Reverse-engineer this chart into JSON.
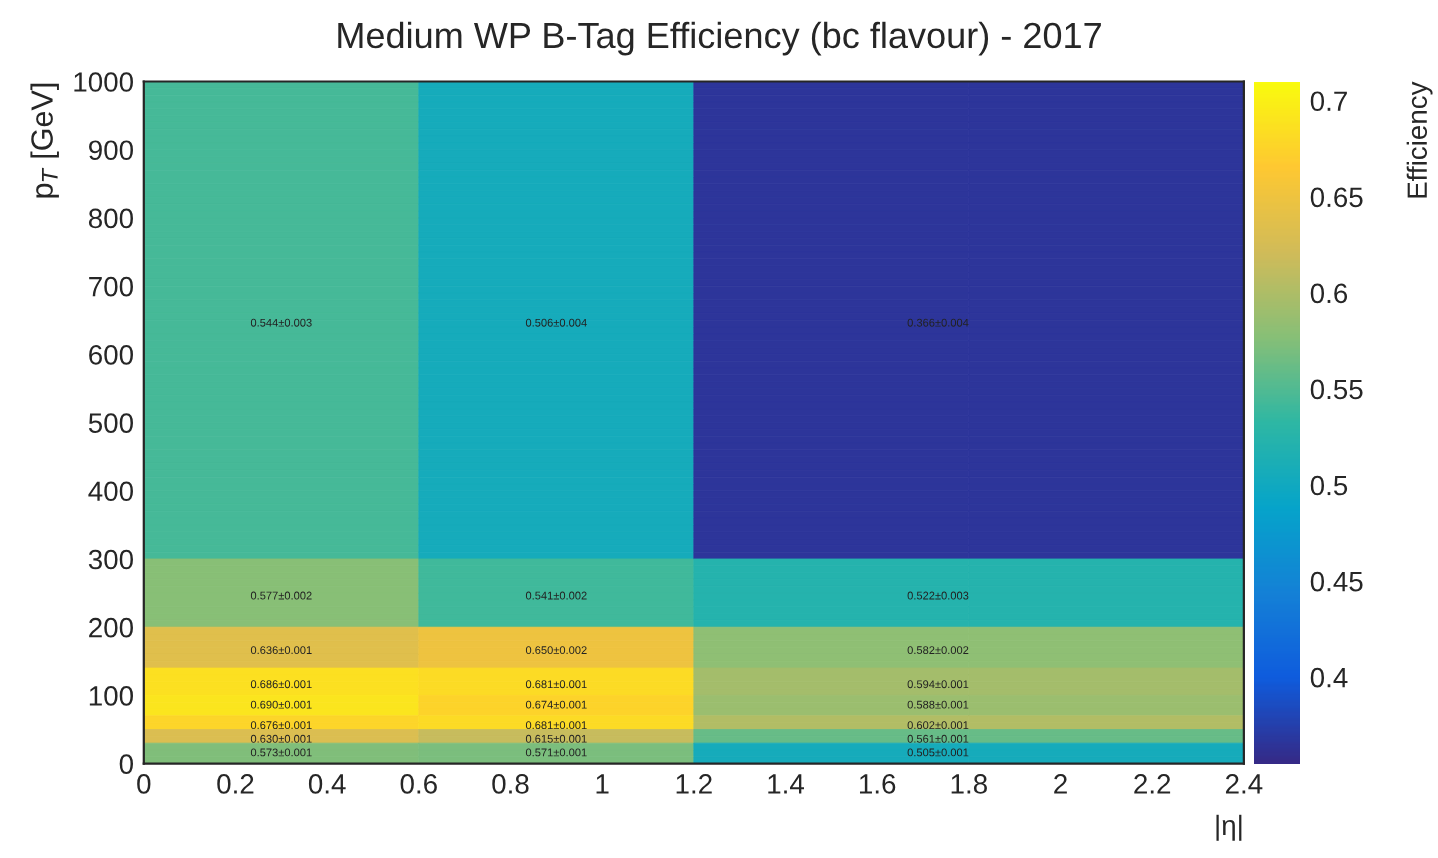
{
  "chart_data": {
    "type": "heatmap",
    "title": "Medium WP B-Tag Efficiency (bc flavour) - 2017",
    "xlabel": "|η|",
    "ylabel": "p$_{T}$ [GeV]",
    "clabel": "Efficiency",
    "cells": [
      [
        0.544,
        0.506,
        0.366,
        0.366
      ],
      [
        0.544,
        0.506,
        0.366,
        0.366
      ],
      [
        0.544,
        0.506,
        0.366,
        0.366
      ],
      [
        0.544,
        0.506,
        0.366,
        0.366
      ],
      [
        0.544,
        0.506,
        0.366,
        0.366
      ],
      [
        0.544,
        0.506,
        0.366,
        0.366
      ],
      [
        0.544,
        0.506,
        0.366,
        0.366
      ],
      [
        0.544,
        0.506,
        0.366,
        0.366
      ],
      [
        0.544,
        0.506,
        0.366,
        0.366
      ],
      [
        0.544,
        0.506,
        0.366,
        0.366
      ],
      [
        0.544,
        0.506,
        0.366,
        0.366
      ],
      [
        0.544,
        0.506,
        0.366,
        0.366
      ],
      [
        0.544,
        0.506,
        0.366,
        0.366
      ],
      [
        0.544,
        0.506,
        0.366,
        0.366
      ],
      [
        0.544,
        0.506,
        0.366,
        0.366
      ],
      [
        0.544,
        0.506,
        0.366,
        0.366
      ],
      [
        0.544,
        0.506,
        0.366,
        0.366
      ],
      [
        0.544,
        0.506,
        0.366,
        0.366
      ],
      [
        0.544,
        0.506,
        0.366,
        0.366
      ],
      [
        0.544,
        0.506,
        0.366,
        0.366
      ],
      [
        0.544,
        0.506,
        0.366,
        0.366
      ],
      [
        0.544,
        0.506,
        0.366,
        0.366
      ],
      [
        0.544,
        0.506,
        0.366,
        0.366
      ],
      [
        0.544,
        0.506,
        0.366,
        0.366
      ],
      [
        0.544,
        0.506,
        0.366,
        0.366
      ],
      [
        0.544,
        0.506,
        0.366,
        0.366
      ],
      [
        0.544,
        0.506,
        0.366,
        0.366
      ],
      [
        0.544,
        0.506,
        0.366,
        0.366
      ],
      [
        0.544,
        0.506,
        0.366,
        0.366
      ],
      [
        0.544,
        0.506,
        0.366,
        0.366
      ],
      [
        0.544,
        0.506,
        0.366,
        0.366
      ],
      [
        0.544,
        0.506,
        0.366,
        0.366
      ],
      [
        0.544,
        0.506,
        0.366,
        0.366
      ],
      [
        0.544,
        0.506,
        0.366,
        0.366
      ],
      [
        0.544,
        0.506,
        0.366,
        0.366
      ],
      [
        0.544,
        0.506,
        0.366,
        0.366
      ],
      [
        0.544,
        0.506,
        0.366,
        0.366
      ],
      [
        0.544,
        0.506,
        0.366,
        0.366
      ],
      [
        0.544,
        0.506,
        0.366,
        0.366
      ],
      [
        0.544,
        0.506,
        0.366,
        0.366
      ],
      [
        0.544,
        0.506,
        0.366,
        0.366
      ],
      [
        0.544,
        0.506,
        0.366,
        0.366
      ],
      [
        0.544,
        0.506,
        0.366,
        0.366
      ],
      [
        0.544,
        0.506,
        0.366,
        0.366
      ],
      [
        0.544,
        0.506,
        0.366,
        0.366
      ],
      [
        0.544,
        0.506,
        0.366,
        0.366
      ],
      [
        0.544,
        0.506,
        0.366,
        0.366
      ],
      [
        0.544,
        0.506,
        0.366,
        0.366
      ],
      [
        0.544,
        0.506,
        0.366,
        0.366
      ],
      [
        0.544,
        0.506,
        0.366,
        0.366
      ],
      [
        0.544,
        0.506,
        0.366,
        0.366
      ],
      [
        0.544,
        0.506,
        0.366,
        0.366
      ],
      [
        0.544,
        0.506,
        0.366,
        0.366
      ],
      [
        0.544,
        0.506,
        0.366,
        0.366
      ],
      [
        0.544,
        0.506,
        0.366,
        0.366
      ],
      [
        0.544,
        0.506,
        0.366,
        0.366
      ],
      [
        0.544,
        0.506,
        0.366,
        0.366
      ],
      [
        0.544,
        0.506,
        0.366,
        0.366
      ],
      [
        0.544,
        0.506,
        0.366,
        0.366
      ],
      [
        0.544,
        0.506,
        0.366,
        0.366
      ],
      [
        0.544,
        0.506,
        0.366,
        0.366
      ],
      [
        0.544,
        0.506,
        0.366,
        0.366
      ],
      [
        0.544,
        0.506,
        0.366,
        0.366
      ],
      [
        0.544,
        0.506,
        0.366,
        0.366
      ],
      [
        0.544,
        0.506,
        0.366,
        0.366
      ],
      [
        0.544,
        0.506,
        0.366,
        0.366
      ],
      [
        0.544,
        0.506,
        0.366,
        0.366
      ],
      [
        0.544,
        0.506,
        0.366,
        0.366
      ],
      [
        0.544,
        0.506,
        0.366,
        0.366
      ],
      [
        0.544,
        0.506,
        0.366,
        0.366
      ],
      [
        0.577,
        0.541,
        0.522,
        0.522
      ],
      [
        0.577,
        0.541,
        0.522,
        0.522
      ],
      [
        0.577,
        0.541,
        0.522,
        0.522
      ],
      [
        0.577,
        0.541,
        0.522,
        0.522
      ],
      [
        0.577,
        0.541,
        0.522,
        0.522
      ],
      [
        0.577,
        0.541,
        0.522,
        0.522
      ],
      [
        0.577,
        0.541,
        0.522,
        0.522
      ],
      [
        0.577,
        0.541,
        0.522,
        0.522
      ],
      [
        0.577,
        0.541,
        0.522,
        0.522
      ],
      [
        0.577,
        0.541,
        0.522,
        0.522
      ],
      [
        0.636,
        0.65,
        0.582,
        0.582
      ],
      [
        0.636,
        0.65,
        0.582,
        0.582
      ],
      [
        0.636,
        0.65,
        0.582,
        0.582
      ],
      [
        0.636,
        0.65,
        0.582,
        0.582
      ],
      [
        0.636,
        0.65,
        0.582,
        0.582
      ],
      [
        0.636,
        0.65,
        0.582,
        0.582
      ],
      [
        0.686,
        0.681,
        0.594,
        0.594
      ],
      [
        0.686,
        0.681,
        0.594,
        0.594
      ],
      [
        0.686,
        0.681,
        0.594,
        0.594
      ],
      [
        0.686,
        0.681,
        0.594,
        0.594
      ],
      [
        0.69,
        0.674,
        0.588,
        0.588
      ],
      [
        0.69,
        0.674,
        0.588,
        0.588
      ],
      [
        0.69,
        0.674,
        0.588,
        0.588
      ],
      [
        0.676,
        0.681,
        0.602,
        0.602
      ],
      [
        0.676,
        0.681,
        0.602,
        0.602
      ],
      [
        0.63,
        0.615,
        0.561,
        0.561
      ],
      [
        0.63,
        0.615,
        0.561,
        0.561
      ],
      [
        0.573,
        0.571,
        0.505,
        0.505
      ],
      [
        0.573,
        0.571,
        0.505,
        0.505
      ],
      [
        0.573,
        0.571,
        0.505,
        0.505
      ]
    ],
    "cell_labels": [
      [
        null,
        null,
        null,
        null
      ],
      [
        null,
        null,
        null,
        null
      ],
      [
        null,
        null,
        null,
        null
      ],
      [
        null,
        null,
        null,
        null
      ],
      [
        null,
        null,
        null,
        null
      ],
      [
        null,
        null,
        null,
        null
      ],
      [
        null,
        null,
        null,
        null
      ],
      [
        null,
        null,
        null,
        null
      ],
      [
        null,
        null,
        null,
        null
      ],
      [
        null,
        null,
        null,
        null
      ],
      [
        null,
        null,
        null,
        null
      ],
      [
        null,
        null,
        null,
        null
      ],
      [
        null,
        null,
        null,
        null
      ],
      [
        null,
        null,
        null,
        null
      ],
      [
        null,
        null,
        null,
        null
      ],
      [
        null,
        null,
        null,
        null
      ],
      [
        null,
        null,
        null,
        null
      ],
      [
        null,
        null,
        null,
        null
      ],
      [
        null,
        null,
        null,
        null
      ],
      [
        null,
        null,
        null,
        null
      ],
      [
        null,
        null,
        null,
        null
      ],
      [
        null,
        null,
        null,
        null
      ],
      [
        null,
        null,
        null,
        null
      ],
      [
        null,
        null,
        null,
        null
      ],
      [
        null,
        null,
        null,
        null
      ],
      [
        null,
        null,
        null,
        null
      ],
      [
        null,
        null,
        null,
        null
      ],
      [
        null,
        null,
        null,
        null
      ],
      [
        null,
        null,
        null,
        null
      ],
      [
        null,
        null,
        null,
        null
      ],
      [
        null,
        null,
        null,
        null
      ],
      [
        null,
        null,
        null,
        null
      ],
      [
        null,
        null,
        null,
        null
      ],
      [
        null,
        null,
        null,
        null
      ],
      [
        null,
        null,
        null,
        null
      ],
      [
        "0.544±0.003",
        "0.506±0.004",
        "0.366±0.004",
        null
      ],
      [
        null,
        null,
        null,
        null
      ],
      [
        null,
        null,
        null,
        null
      ],
      [
        null,
        null,
        null,
        null
      ],
      [
        null,
        null,
        null,
        null
      ],
      [
        null,
        null,
        null,
        null
      ],
      [
        null,
        null,
        null,
        null
      ],
      [
        null,
        null,
        null,
        null
      ],
      [
        null,
        null,
        null,
        null
      ],
      [
        null,
        null,
        null,
        null
      ],
      [
        null,
        null,
        null,
        null
      ],
      [
        null,
        null,
        null,
        null
      ],
      [
        null,
        null,
        null,
        null
      ],
      [
        null,
        null,
        null,
        null
      ],
      [
        null,
        null,
        null,
        null
      ],
      [
        null,
        null,
        null,
        null
      ],
      [
        null,
        null,
        null,
        null
      ],
      [
        null,
        null,
        null,
        null
      ],
      [
        null,
        null,
        null,
        null
      ],
      [
        null,
        null,
        null,
        null
      ],
      [
        null,
        null,
        null,
        null
      ],
      [
        null,
        null,
        null,
        null
      ],
      [
        null,
        null,
        null,
        null
      ],
      [
        null,
        null,
        null,
        null
      ],
      [
        null,
        null,
        null,
        null
      ],
      [
        null,
        null,
        null,
        null
      ],
      [
        null,
        null,
        null,
        null
      ],
      [
        null,
        null,
        null,
        null
      ],
      [
        null,
        null,
        null,
        null
      ],
      [
        null,
        null,
        null,
        null
      ],
      [
        null,
        null,
        null,
        null
      ],
      [
        null,
        null,
        null,
        null
      ],
      [
        null,
        null,
        null,
        null
      ],
      [
        null,
        null,
        null,
        null
      ],
      [
        null,
        null,
        null,
        null
      ],
      [
        null,
        null,
        null,
        null
      ],
      [
        null,
        null,
        null,
        null
      ],
      [
        null,
        null,
        null,
        null
      ],
      [
        null,
        null,
        null,
        null
      ],
      [
        null,
        null,
        null,
        null
      ],
      [
        "0.577±0.002",
        "0.541±0.002",
        "0.522±0.003",
        null
      ],
      [
        null,
        null,
        null,
        null
      ],
      [
        null,
        null,
        null,
        null
      ],
      [
        null,
        null,
        null,
        null
      ],
      [
        null,
        null,
        null,
        null
      ],
      [
        null,
        null,
        null,
        null
      ],
      [
        null,
        null,
        null,
        null
      ],
      [
        null,
        null,
        null,
        null
      ],
      [
        "0.636±0.001",
        "0.650±0.002",
        "0.582±0.002",
        null
      ],
      [
        null,
        null,
        null,
        null
      ],
      [
        null,
        null,
        null,
        null
      ],
      [
        null,
        null,
        null,
        null
      ],
      [
        null,
        null,
        null,
        null
      ],
      [
        "0.686±0.001",
        "0.681±0.001",
        "0.594±0.001",
        null
      ],
      [
        null,
        null,
        null,
        null
      ],
      [
        null,
        null,
        null,
        null
      ],
      [
        "0.690±0.001",
        "0.674±0.001",
        "0.588±0.001",
        null
      ],
      [
        null,
        null,
        null,
        null
      ],
      [
        null,
        null,
        null,
        null
      ],
      [
        "0.676±0.001",
        "0.681±0.001",
        "0.602±0.001",
        null
      ],
      [
        null,
        null,
        null,
        null
      ],
      [
        "0.630±0.001",
        "0.615±0.001",
        "0.561±0.001",
        null
      ],
      [
        null,
        null,
        null,
        null
      ],
      [
        "0.573±0.001",
        "0.571±0.001",
        "0.505±0.001",
        null
      ],
      [
        null,
        null,
        null,
        null
      ]
    ],
    "xlim": [
      0,
      2.4
    ],
    "ylim": [
      0,
      1000
    ],
    "xticks": [
      0,
      0.2,
      0.4,
      0.6,
      0.8,
      1,
      1.2,
      1.4,
      1.6,
      1.8,
      2,
      2.2,
      2.4
    ],
    "yticks": [
      0,
      100,
      200,
      300,
      400,
      500,
      600,
      700,
      800,
      900,
      1000
    ],
    "clim": [
      0.355,
      0.71
    ],
    "cticks": [
      0.4,
      0.45,
      0.5,
      0.55,
      0.6,
      0.65,
      0.7
    ]
  }
}
